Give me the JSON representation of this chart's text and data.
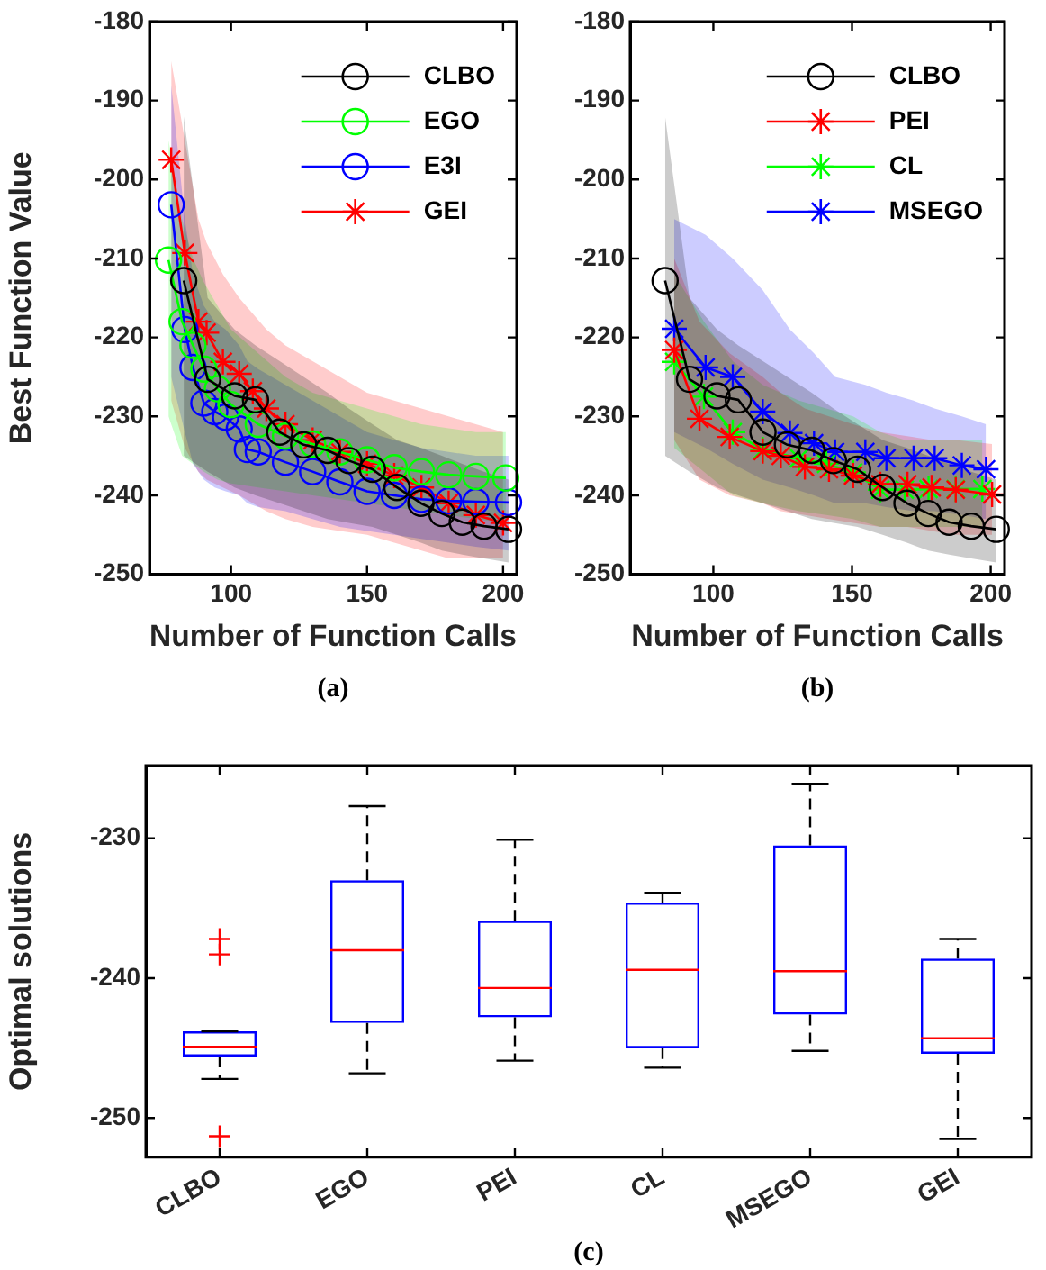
{
  "chart_data": [
    {
      "type": "line",
      "ylabel": "Best Function Value",
      "xlabel": "Number of Function Calls",
      "xlim": [
        70,
        205
      ],
      "xticks": [
        100,
        150,
        200
      ],
      "ylim": [
        -250,
        -180
      ],
      "yticks": [
        -250,
        -240,
        -230,
        -220,
        -210,
        -200,
        -190,
        -180
      ],
      "legend": "top right",
      "annotations": [
        "(a)"
      ],
      "series": [
        {
          "name": "CLBO",
          "color": "#000000",
          "marker": "circle",
          "x": [
            82.6,
            91.4,
            101.3,
            109,
            117.9,
            126.7,
            135.5,
            143.3,
            152,
            161,
            169.8,
            177.5,
            185,
            193,
            202
          ],
          "values": [
            -212.8,
            -225.3,
            -227.4,
            -227.9,
            -232,
            -233.6,
            -234.3,
            -235.6,
            -236.7,
            -239,
            -241,
            -242.3,
            -243.4,
            -243.9,
            -244.3
          ],
          "upper": [
            -192,
            -215,
            -219,
            -221,
            -223,
            -225,
            -227,
            -229,
            -231,
            -233,
            -234,
            -235,
            -236,
            -237,
            -238
          ],
          "lower": [
            -235,
            -237,
            -239,
            -240,
            -241,
            -242,
            -243,
            -243.5,
            -244,
            -245,
            -246,
            -247,
            -247.5,
            -248,
            -248.5
          ]
        },
        {
          "name": "EGO",
          "color": "#00ff00",
          "marker": "circle",
          "x": [
            77,
            82,
            86,
            90,
            95,
            100,
            110,
            120,
            130,
            140,
            150,
            160,
            170,
            180,
            190,
            201
          ],
          "values": [
            -210.2,
            -218,
            -221,
            -224,
            -226.5,
            -228.5,
            -231,
            -232.5,
            -233.5,
            -234.5,
            -235.5,
            -236.5,
            -237,
            -237.4,
            -237.6,
            -237.8
          ],
          "upper": [
            -195,
            -205,
            -210,
            -213,
            -216,
            -219,
            -222,
            -225,
            -227,
            -228,
            -229,
            -230,
            -231,
            -231.5,
            -232,
            -232
          ],
          "lower": [
            -230,
            -235,
            -236,
            -237,
            -238,
            -238.5,
            -239,
            -239.5,
            -240,
            -240.5,
            -241,
            -241.5,
            -242,
            -242.5,
            -243,
            -243.5
          ]
        },
        {
          "name": "E3I",
          "color": "#0000ff",
          "marker": "circle",
          "x": [
            78,
            83,
            86,
            90,
            94,
            98,
            103,
            106,
            110,
            120,
            130,
            140,
            150,
            160,
            170,
            180,
            190,
            202
          ],
          "values": [
            -203.2,
            -219,
            -223.8,
            -228.3,
            -229.4,
            -230.1,
            -231.6,
            -234.2,
            -234.5,
            -235.8,
            -237,
            -238.3,
            -239.5,
            -240,
            -240.5,
            -240.7,
            -240.8,
            -240.9
          ],
          "upper": [
            -188,
            -205,
            -212,
            -216,
            -218,
            -219,
            -221,
            -223,
            -224,
            -226,
            -228,
            -230,
            -232,
            -233,
            -234,
            -234.5,
            -235,
            -235
          ],
          "lower": [
            -225,
            -232,
            -236,
            -238,
            -239,
            -239.5,
            -240,
            -241,
            -241.5,
            -242,
            -243,
            -244,
            -244.5,
            -245,
            -245.5,
            -246,
            -246.5,
            -247
          ]
        },
        {
          "name": "GEI",
          "color": "#ff0000",
          "marker": "cross",
          "x": [
            78,
            83,
            88,
            91,
            97,
            103,
            108,
            113,
            120,
            130,
            140,
            150,
            160,
            170,
            180,
            190,
            200
          ],
          "values": [
            -197.5,
            -209.3,
            -218,
            -219.4,
            -223.1,
            -224.6,
            -226.8,
            -229,
            -231,
            -233,
            -234.5,
            -236,
            -237.5,
            -239,
            -241,
            -242.5,
            -243.5
          ],
          "upper": [
            -185,
            -195,
            -205,
            -208,
            -212,
            -215,
            -217,
            -219,
            -221,
            -223,
            -225,
            -227,
            -228,
            -229,
            -230,
            -231,
            -232
          ],
          "lower": [
            -228,
            -234,
            -237,
            -238,
            -239,
            -240,
            -241,
            -242,
            -243,
            -244,
            -244.5,
            -245,
            -246,
            -247,
            -248,
            -248,
            -248
          ]
        }
      ]
    },
    {
      "type": "line",
      "xlabel": "Number of Function Calls",
      "xlim": [
        70,
        205
      ],
      "xticks": [
        100,
        150,
        200
      ],
      "ylim": [
        -250,
        -180
      ],
      "yticks": [
        -250,
        -240,
        -230,
        -220,
        -210,
        -200,
        -190,
        -180
      ],
      "legend": "top right",
      "annotations": [
        "(b)"
      ],
      "series": [
        {
          "name": "CLBO",
          "color": "#000000",
          "marker": "circle",
          "x": [
            82.6,
            91.4,
            101.3,
            109,
            117.9,
            126.7,
            135.5,
            143.3,
            152,
            161,
            169.8,
            177.5,
            185,
            193,
            202
          ],
          "values": [
            -212.8,
            -225.3,
            -227.4,
            -227.9,
            -232,
            -233.6,
            -234.3,
            -235.6,
            -236.7,
            -239,
            -241,
            -242.3,
            -243.4,
            -243.9,
            -244.3
          ],
          "upper": [
            -192,
            -215,
            -219,
            -221,
            -223,
            -225,
            -227,
            -229,
            -231,
            -233,
            -234,
            -235,
            -236,
            -237,
            -238
          ],
          "lower": [
            -235,
            -237,
            -239,
            -240,
            -241,
            -242,
            -243,
            -243.5,
            -244,
            -245,
            -246,
            -247,
            -247.5,
            -248,
            -248.5
          ]
        },
        {
          "name": "PEI",
          "color": "#ff0000",
          "marker": "cross",
          "x": [
            85.9,
            95,
            105.9,
            117.8,
            124.3,
            133,
            141.7,
            150.4,
            160.2,
            170,
            178.7,
            187.4,
            200.5
          ],
          "values": [
            -221.6,
            -230.3,
            -232.6,
            -234.4,
            -235,
            -236.4,
            -236.7,
            -237.5,
            -238.6,
            -238.6,
            -239,
            -239.3,
            -239.9
          ],
          "upper": [
            -210,
            -218,
            -222,
            -225,
            -227,
            -229,
            -230,
            -231,
            -232,
            -232.5,
            -233,
            -233,
            -233.5
          ],
          "lower": [
            -233,
            -238,
            -240,
            -241,
            -242,
            -242.5,
            -243,
            -243.5,
            -244,
            -244,
            -244.5,
            -245,
            -245
          ]
        },
        {
          "name": "CL",
          "color": "#00ff00",
          "marker": "cross",
          "x": [
            85.9,
            96.6,
            107,
            117.8,
            130.9,
            140.7,
            150.4,
            160.2,
            169,
            177.6,
            187.4,
            197
          ],
          "values": [
            -223.1,
            -227.5,
            -232,
            -234.2,
            -235.3,
            -236,
            -237.1,
            -239.3,
            -239.3,
            -239.2,
            -239.2,
            -239.2
          ],
          "upper": [
            -212,
            -218,
            -223,
            -226,
            -228,
            -229,
            -230,
            -232,
            -233,
            -233,
            -233,
            -233
          ],
          "lower": [
            -234,
            -237,
            -240,
            -241,
            -242,
            -242.5,
            -243,
            -244,
            -244,
            -244,
            -244,
            -244
          ]
        },
        {
          "name": "MSEGO",
          "color": "#0000ff",
          "marker": "cross",
          "x": [
            85.9,
            97.2,
            107,
            117.8,
            127.6,
            136.3,
            143.9,
            154.8,
            162.4,
            172.2,
            179.8,
            189.6,
            198.3
          ],
          "values": [
            -218.9,
            -223.8,
            -225,
            -229.4,
            -232.1,
            -233.4,
            -234.5,
            -234.5,
            -235.3,
            -235.3,
            -235.3,
            -236.2,
            -236.7
          ],
          "upper": [
            -205,
            -207,
            -210,
            -214,
            -219,
            -222,
            -225,
            -226,
            -227,
            -228,
            -229,
            -230,
            -231
          ],
          "lower": [
            -232,
            -234,
            -236,
            -238,
            -239,
            -240,
            -241,
            -241,
            -241.5,
            -242,
            -242,
            -242.5,
            -243
          ]
        }
      ]
    },
    {
      "type": "box",
      "ylabel": "Optimal solutions",
      "categories": [
        "CLBO",
        "EGO",
        "PEI",
        "CL",
        "MSEGO",
        "GEI"
      ],
      "ylim": [
        -252.8,
        -224.8
      ],
      "yticks": [
        -250,
        -240,
        -230
      ],
      "annotations": [
        "(c)"
      ],
      "boxes": [
        {
          "low": -247.2,
          "q1": -245.6,
          "median": -244.9,
          "q3": -243.8,
          "high": -243.8,
          "outliers": [
            -237.2,
            -238.3,
            -251.3
          ]
        },
        {
          "low": -246.8,
          "q1": -243.2,
          "median": -238,
          "q3": -233,
          "high": -227.7
        },
        {
          "low": -245.9,
          "q1": -242.8,
          "median": -240.7,
          "q3": -235.9,
          "high": -230.1
        },
        {
          "low": -246.4,
          "q1": -245,
          "median": -239.4,
          "q3": -234.6,
          "high": -233.9
        },
        {
          "low": -245.2,
          "q1": -242.6,
          "median": -239.5,
          "q3": -230.5,
          "high": -226.1
        },
        {
          "low": -251.5,
          "q1": -245.4,
          "median": -244.3,
          "q3": -238.6,
          "high": -237.2
        }
      ]
    }
  ]
}
